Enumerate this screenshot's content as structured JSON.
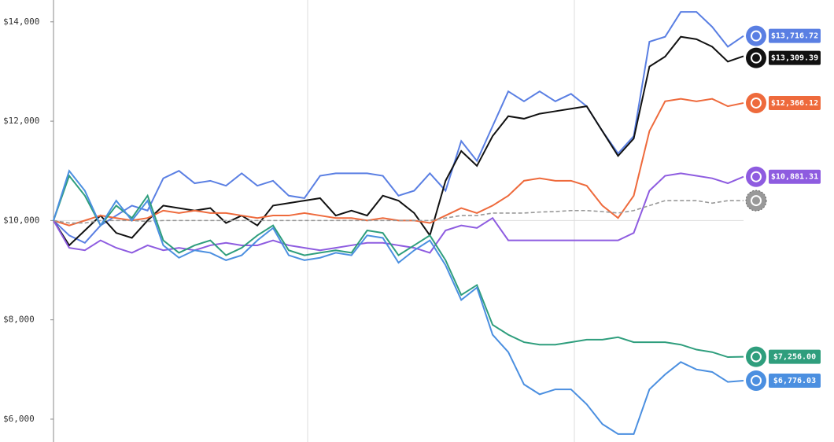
{
  "chart_data": {
    "type": "line",
    "ylim": [
      5540,
      14440
    ],
    "yticks": [
      {
        "value": 6000,
        "label": "$6,000"
      },
      {
        "value": 8000,
        "label": "$8,000"
      },
      {
        "value": 10000,
        "label": "$10,000"
      },
      {
        "value": 12000,
        "label": "$12,000"
      },
      {
        "value": 14000,
        "label": "$14,000"
      }
    ],
    "series": [
      {
        "color": "#5a7fe3",
        "value_labels": [
          "$13,716.72"
        ],
        "values": [
          10000,
          9700,
          9550,
          9900,
          10100,
          10300,
          10200,
          10850,
          11000,
          10750,
          10800,
          10700,
          10950,
          10700,
          10800,
          10500,
          10450,
          10900,
          10950,
          10950,
          10950,
          10900,
          10500,
          10600,
          10950,
          10600,
          11600,
          11200,
          11900,
          12600,
          12400,
          12600,
          12400,
          12550,
          12300,
          11800,
          11350,
          11700,
          13600,
          13700,
          14200,
          14200,
          13900,
          13500,
          13716.72
        ]
      },
      {
        "color": "#111111",
        "value_labels": [
          "$13,309.39"
        ],
        "values": [
          10000,
          9500,
          9800,
          10100,
          9750,
          9650,
          10000,
          10300,
          10250,
          10200,
          10250,
          9950,
          10100,
          9900,
          10300,
          10350,
          10400,
          10450,
          10100,
          10200,
          10100,
          10500,
          10400,
          10150,
          9700,
          10800,
          11400,
          11100,
          11700,
          12100,
          12050,
          12150,
          12200,
          12250,
          12300,
          11800,
          11300,
          11650,
          13100,
          13300,
          13700,
          13650,
          13500,
          13200,
          13309.39
        ]
      },
      {
        "color": "#ee6a3c",
        "value_labels": [
          "$12,366.12"
        ],
        "values": [
          10000,
          9900,
          10000,
          10100,
          10050,
          10000,
          10050,
          10200,
          10150,
          10200,
          10150,
          10150,
          10100,
          10050,
          10100,
          10100,
          10150,
          10100,
          10050,
          10050,
          10000,
          10050,
          10000,
          10000,
          9950,
          10100,
          10250,
          10150,
          10300,
          10500,
          10800,
          10850,
          10800,
          10800,
          10700,
          10300,
          10050,
          10500,
          11800,
          12400,
          12450,
          12400,
          12450,
          12300,
          12366.12
        ]
      },
      {
        "color": "#8e5ce0",
        "value_labels": [
          "$10,881.31"
        ],
        "values": [
          10000,
          9450,
          9400,
          9600,
          9450,
          9350,
          9500,
          9400,
          9450,
          9400,
          9500,
          9550,
          9500,
          9500,
          9600,
          9500,
          9450,
          9400,
          9450,
          9500,
          9550,
          9550,
          9500,
          9450,
          9350,
          9800,
          9900,
          9850,
          10050,
          9600,
          9600,
          9600,
          9600,
          9600,
          9600,
          9600,
          9600,
          9750,
          10600,
          10900,
          10950,
          10900,
          10850,
          10750,
          10881.31
        ]
      },
      {
        "color": "#999999",
        "dashed": true,
        "values": [
          10000,
          9950,
          9950,
          10000,
          10000,
          10000,
          9980,
          10000,
          10000,
          10000,
          10000,
          10000,
          10000,
          10000,
          10000,
          10000,
          10000,
          10000,
          10000,
          10000,
          10000,
          10000,
          10000,
          10000,
          10000,
          10050,
          10100,
          10100,
          10150,
          10150,
          10150,
          10170,
          10180,
          10200,
          10200,
          10180,
          10150,
          10200,
          10300,
          10400,
          10400,
          10400,
          10350,
          10400,
          10400
        ]
      },
      {
        "color": "#2f9e7d",
        "value_labels": [
          "$7,256.00"
        ],
        "values": [
          10000,
          10900,
          10500,
          9900,
          10300,
          10050,
          10500,
          9600,
          9350,
          9500,
          9600,
          9300,
          9450,
          9700,
          9900,
          9400,
          9300,
          9350,
          9400,
          9350,
          9800,
          9750,
          9300,
          9500,
          9700,
          9200,
          8500,
          8700,
          7900,
          7700,
          7550,
          7500,
          7500,
          7550,
          7600,
          7600,
          7650,
          7550,
          7550,
          7550,
          7500,
          7400,
          7350,
          7250,
          7256.0
        ]
      },
      {
        "color": "#4b8fe0",
        "value_labels": [
          "$6,776.03"
        ],
        "values": [
          10000,
          11000,
          10600,
          9900,
          10400,
          10000,
          10400,
          9500,
          9250,
          9400,
          9350,
          9200,
          9300,
          9600,
          9850,
          9300,
          9200,
          9250,
          9350,
          9300,
          9700,
          9650,
          9150,
          9400,
          9600,
          9100,
          8400,
          8650,
          7700,
          7350,
          6700,
          6500,
          6600,
          6600,
          6300,
          5900,
          5700,
          5700,
          6600,
          6900,
          7150,
          7000,
          6950,
          6750,
          6776.03
        ]
      }
    ]
  }
}
